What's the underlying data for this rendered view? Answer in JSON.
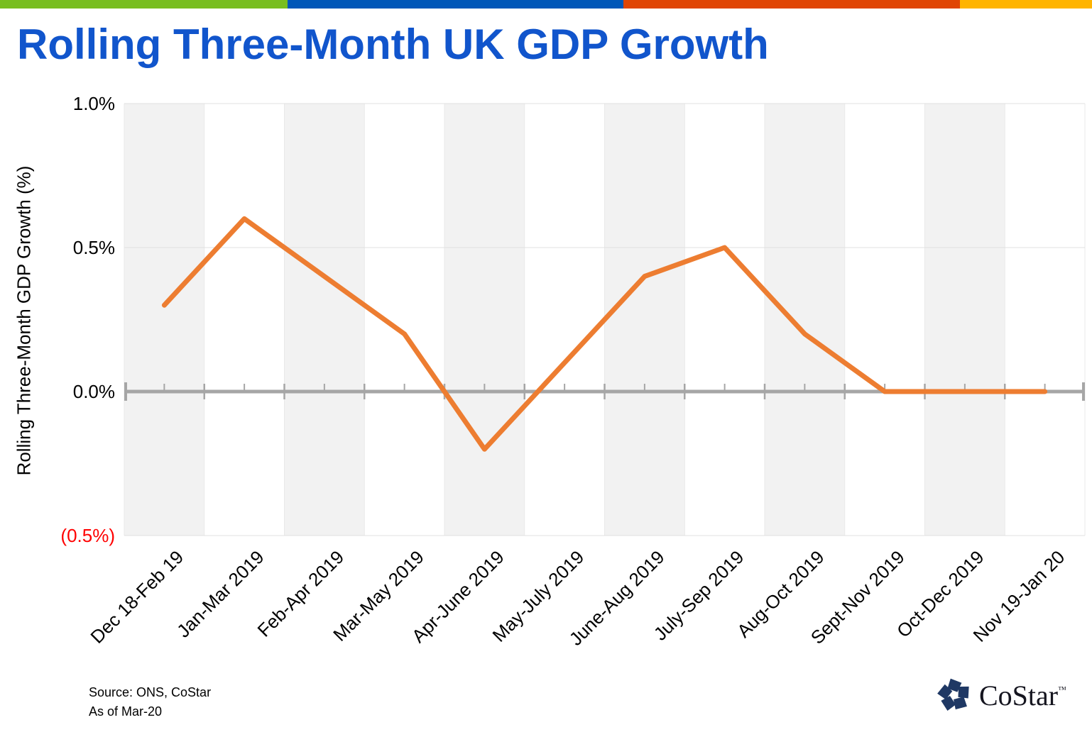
{
  "page": {
    "title": "Rolling Three-Month UK GDP Growth",
    "title_color": "#1155CC",
    "top_bar_colors": [
      "#78BE20",
      "#0057B8",
      "#E04503",
      "#FFB400"
    ]
  },
  "source": {
    "line1": "Source: ONS, CoStar",
    "line2": "As of Mar-20"
  },
  "logo": {
    "name": "CoStar",
    "tm_symbol": "™",
    "star_color": "#1F3864",
    "text_color": "#15151F"
  },
  "chart_data": {
    "type": "line",
    "title": "Rolling Three-Month UK GDP Growth",
    "ylabel": "Rolling Three-Month GDP Growth (%)",
    "xlabel": "",
    "categories": [
      "Dec 18-Feb 19",
      "Jan-Mar 2019",
      "Feb-Apr 2019",
      "Mar-May 2019",
      "Apr-June 2019",
      "May-July 2019",
      "June-Aug 2019",
      "July-Sep 2019",
      "Aug-Oct 2019",
      "Sept-Nov 2019",
      "Oct-Dec 2019",
      "Nov 19-Jan 20"
    ],
    "values": [
      0.3,
      0.6,
      0.4,
      0.2,
      -0.2,
      0.1,
      0.4,
      0.5,
      0.2,
      0.0,
      0.0,
      0.0
    ],
    "unit": "%",
    "ylim": [
      -0.5,
      1.0
    ],
    "yticks": [
      1.0,
      0.5,
      0.0,
      -0.5
    ],
    "ytick_labels": [
      "1.0%",
      "0.5%",
      "0.0%",
      "(0.5%)"
    ],
    "ytick_colors": [
      "#000000",
      "#000000",
      "#000000",
      "#FF0000"
    ],
    "line_color": "#ED7D31",
    "band_color": "#F2F2F2",
    "axis_color": "#A6A6A6",
    "gridline_color": "#E0E0E0",
    "grid": true,
    "legend": "none"
  }
}
